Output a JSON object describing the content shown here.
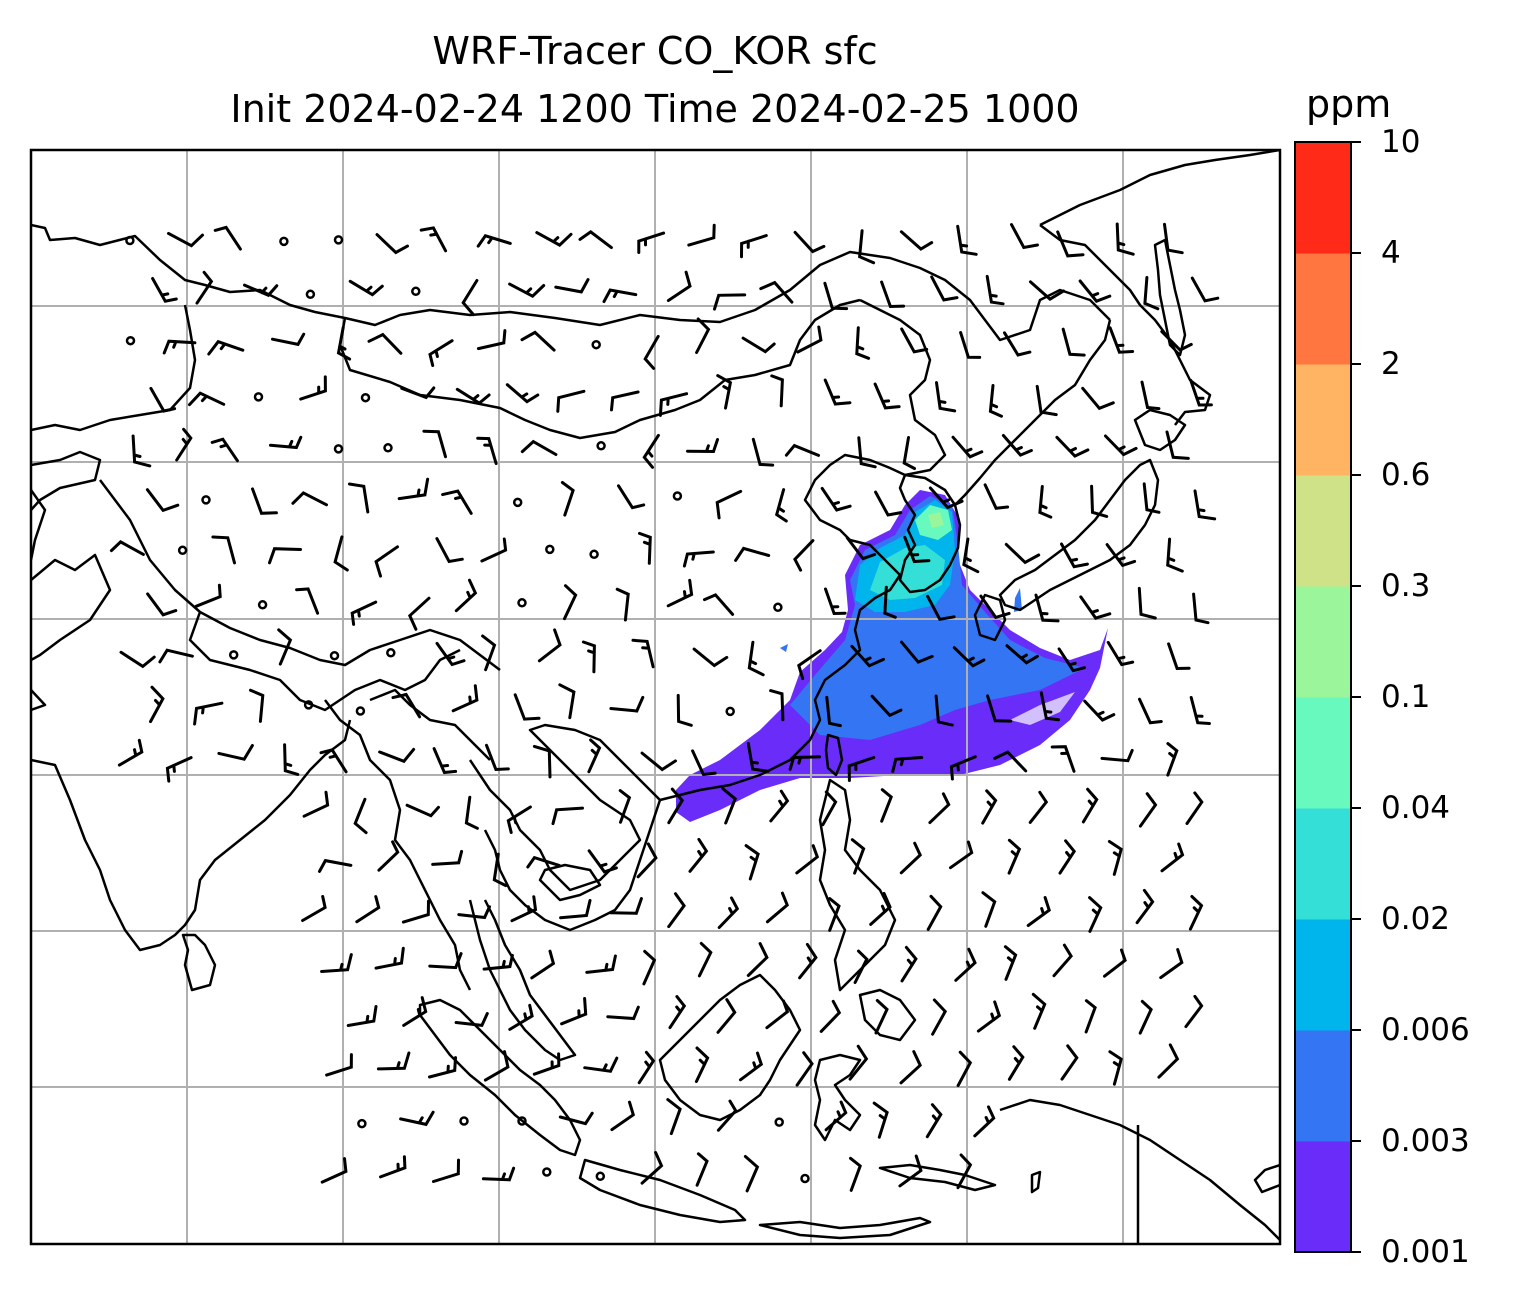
{
  "title": {
    "line1": "WRF-Tracer CO_KOR sfc",
    "line2": "Init 2024-02-24 1200 Time 2024-02-25 1000"
  },
  "colorbar": {
    "unit": "ppm",
    "levels": [
      "0.001",
      "0.003",
      "0.006",
      "0.02",
      "0.04",
      "0.1",
      "0.3",
      "0.6",
      "2",
      "4",
      "10"
    ],
    "colors": [
      "#6a2cf9",
      "#3375f2",
      "#00b4ec",
      "#33dfd6",
      "#68f9be",
      "#9bf59a",
      "#cfe287",
      "#feb462",
      "#ff7640",
      "#ff2a18"
    ]
  },
  "map": {
    "frame_color": "#000000",
    "grid_color": "#b0b0b0",
    "coastline_color": "#000000",
    "wind_barb_color": "#000000"
  }
}
